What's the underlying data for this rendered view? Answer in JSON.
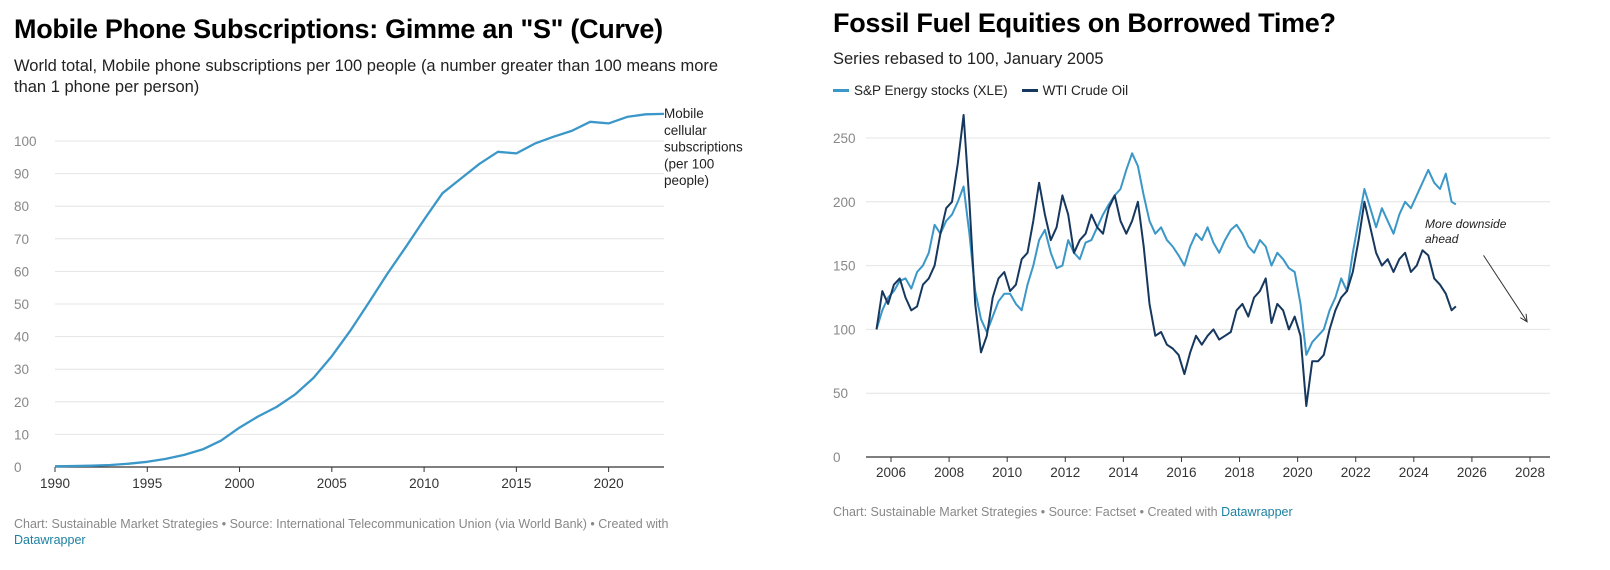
{
  "charts": {
    "left": {
      "title": "Mobile Phone Subscriptions: Gimme an \"S\" (Curve)",
      "subtitle": "World total, Mobile phone subscriptions per 100 people (a number greater than 100 means more than 1 phone per person)",
      "footer_text": "Chart: Sustainable Market Strategies • Source: International Telecommunication Union (via World Bank)  • Created with",
      "footer_link": "Datawrapper"
    },
    "right": {
      "title": "Fossil Fuel Equities on Borrowed Time?",
      "subtitle": "Series rebased to 100, January 2005",
      "footer_text": "Chart: Sustainable Market Strategies • Source: Factset • Created with",
      "footer_link": "Datawrapper"
    }
  },
  "colors": {
    "mobile_line": "#3b97c8",
    "xle_line": "#3b97c8",
    "wti_line": "#16385e",
    "grid": "#e4e4e4",
    "axis": "#333333",
    "tick": "#888888"
  },
  "chart_data": [
    {
      "type": "line",
      "xlim": [
        1990,
        2023
      ],
      "ylim": [
        0,
        105
      ],
      "x_ticks": [
        1990,
        1995,
        2000,
        2005,
        2010,
        2015,
        2020
      ],
      "y_ticks": [
        0,
        10,
        20,
        30,
        40,
        50,
        60,
        70,
        80,
        90,
        100
      ],
      "grid": true,
      "series": [
        {
          "name": "Mobile cellular subscriptions (per 100 people)",
          "label_lines": [
            "Mobile",
            "cellular",
            "subscriptions",
            "(per 100",
            "people)"
          ],
          "x": [
            1990,
            1991,
            1992,
            1993,
            1994,
            1995,
            1996,
            1997,
            1998,
            1999,
            2000,
            2001,
            2002,
            2003,
            2004,
            2005,
            2006,
            2007,
            2008,
            2009,
            2010,
            2011,
            2012,
            2013,
            2014,
            2015,
            2016,
            2017,
            2018,
            2019,
            2020,
            2021,
            2022,
            2023
          ],
          "values": [
            0.2,
            0.3,
            0.4,
            0.6,
            1.0,
            1.6,
            2.5,
            3.7,
            5.4,
            8.1,
            12.1,
            15.5,
            18.4,
            22.2,
            27.3,
            34.0,
            41.8,
            50.4,
            59.2,
            67.4,
            75.9,
            84.0,
            88.5,
            93.0,
            96.7,
            96.2,
            99.2,
            101.3,
            103.1,
            105.9,
            105.4,
            107.4,
            108.2,
            108.3
          ]
        }
      ]
    },
    {
      "type": "line",
      "xlim": [
        2005,
        2028
      ],
      "ylim": [
        0,
        260
      ],
      "x_ticks": [
        2006,
        2008,
        2010,
        2012,
        2014,
        2016,
        2018,
        2020,
        2022,
        2024,
        2026,
        2028
      ],
      "y_ticks": [
        0,
        50,
        100,
        150,
        200,
        250
      ],
      "grid": true,
      "legend_position": "top-left",
      "annotation": {
        "text_lines": [
          "More downside",
          "ahead"
        ],
        "arrow_from": [
          2026.4,
          158
        ],
        "arrow_to": [
          2027.9,
          106
        ]
      },
      "series": [
        {
          "name": "S&P Energy stocks (XLE)",
          "x": [
            2005.5,
            2005.7,
            2005.9,
            2006.1,
            2006.3,
            2006.5,
            2006.7,
            2006.9,
            2007.1,
            2007.3,
            2007.5,
            2007.7,
            2007.9,
            2008.1,
            2008.3,
            2008.5,
            2008.7,
            2008.9,
            2009.1,
            2009.3,
            2009.5,
            2009.7,
            2009.9,
            2010.1,
            2010.3,
            2010.5,
            2010.7,
            2010.9,
            2011.1,
            2011.3,
            2011.5,
            2011.7,
            2011.9,
            2012.1,
            2012.3,
            2012.5,
            2012.7,
            2012.9,
            2013.1,
            2013.3,
            2013.5,
            2013.7,
            2013.9,
            2014.1,
            2014.3,
            2014.5,
            2014.7,
            2014.9,
            2015.1,
            2015.3,
            2015.5,
            2015.7,
            2015.9,
            2016.1,
            2016.3,
            2016.5,
            2016.7,
            2016.9,
            2017.1,
            2017.3,
            2017.5,
            2017.7,
            2017.9,
            2018.1,
            2018.3,
            2018.5,
            2018.7,
            2018.9,
            2019.1,
            2019.3,
            2019.5,
            2019.7,
            2019.9,
            2020.1,
            2020.3,
            2020.5,
            2020.7,
            2020.9,
            2021.1,
            2021.3,
            2021.5,
            2021.7,
            2021.9,
            2022.1,
            2022.3,
            2022.5,
            2022.7,
            2022.9,
            2023.1,
            2023.3,
            2023.5,
            2023.7,
            2023.9,
            2024.1,
            2024.3,
            2024.5,
            2024.7,
            2024.9,
            2025.1,
            2025.3,
            2025.45
          ],
          "values": [
            100,
            115,
            125,
            130,
            138,
            140,
            132,
            145,
            150,
            160,
            182,
            175,
            185,
            190,
            200,
            212,
            175,
            130,
            108,
            98,
            110,
            122,
            128,
            128,
            120,
            115,
            135,
            150,
            170,
            178,
            160,
            148,
            150,
            170,
            160,
            155,
            168,
            170,
            180,
            190,
            198,
            205,
            210,
            225,
            238,
            228,
            205,
            185,
            175,
            180,
            170,
            165,
            158,
            150,
            165,
            175,
            170,
            180,
            168,
            160,
            170,
            178,
            182,
            175,
            165,
            160,
            170,
            165,
            150,
            160,
            155,
            148,
            145,
            120,
            80,
            90,
            95,
            100,
            115,
            125,
            140,
            130,
            160,
            185,
            210,
            195,
            180,
            195,
            185,
            175,
            190,
            200,
            195,
            205,
            215,
            225,
            215,
            210,
            222,
            200,
            198
          ]
        },
        {
          "name": "WTI Crude Oil",
          "x": [
            2005.5,
            2005.7,
            2005.9,
            2006.1,
            2006.3,
            2006.5,
            2006.7,
            2006.9,
            2007.1,
            2007.3,
            2007.5,
            2007.7,
            2007.9,
            2008.1,
            2008.3,
            2008.5,
            2008.7,
            2008.9,
            2009.1,
            2009.3,
            2009.5,
            2009.7,
            2009.9,
            2010.1,
            2010.3,
            2010.5,
            2010.7,
            2010.9,
            2011.1,
            2011.3,
            2011.5,
            2011.7,
            2011.9,
            2012.1,
            2012.3,
            2012.5,
            2012.7,
            2012.9,
            2013.1,
            2013.3,
            2013.5,
            2013.7,
            2013.9,
            2014.1,
            2014.3,
            2014.5,
            2014.7,
            2014.9,
            2015.1,
            2015.3,
            2015.5,
            2015.7,
            2015.9,
            2016.1,
            2016.3,
            2016.5,
            2016.7,
            2016.9,
            2017.1,
            2017.3,
            2017.5,
            2017.7,
            2017.9,
            2018.1,
            2018.3,
            2018.5,
            2018.7,
            2018.9,
            2019.1,
            2019.3,
            2019.5,
            2019.7,
            2019.9,
            2020.1,
            2020.3,
            2020.5,
            2020.7,
            2020.9,
            2021.1,
            2021.3,
            2021.5,
            2021.7,
            2021.9,
            2022.1,
            2022.3,
            2022.5,
            2022.7,
            2022.9,
            2023.1,
            2023.3,
            2023.5,
            2023.7,
            2023.9,
            2024.1,
            2024.3,
            2024.5,
            2024.7,
            2024.9,
            2025.1,
            2025.3,
            2025.45
          ],
          "values": [
            100,
            130,
            120,
            135,
            140,
            125,
            115,
            118,
            135,
            140,
            150,
            175,
            195,
            200,
            230,
            268,
            200,
            120,
            82,
            95,
            125,
            140,
            145,
            130,
            135,
            155,
            160,
            185,
            215,
            190,
            170,
            180,
            205,
            190,
            160,
            170,
            175,
            190,
            180,
            175,
            195,
            205,
            185,
            175,
            185,
            200,
            165,
            120,
            95,
            98,
            88,
            85,
            80,
            65,
            82,
            95,
            88,
            95,
            100,
            92,
            95,
            98,
            115,
            120,
            110,
            125,
            130,
            140,
            105,
            120,
            115,
            100,
            110,
            95,
            40,
            75,
            75,
            80,
            100,
            115,
            125,
            130,
            145,
            170,
            200,
            180,
            160,
            150,
            155,
            145,
            155,
            160,
            145,
            150,
            162,
            158,
            140,
            135,
            128,
            115,
            118
          ]
        }
      ]
    }
  ]
}
